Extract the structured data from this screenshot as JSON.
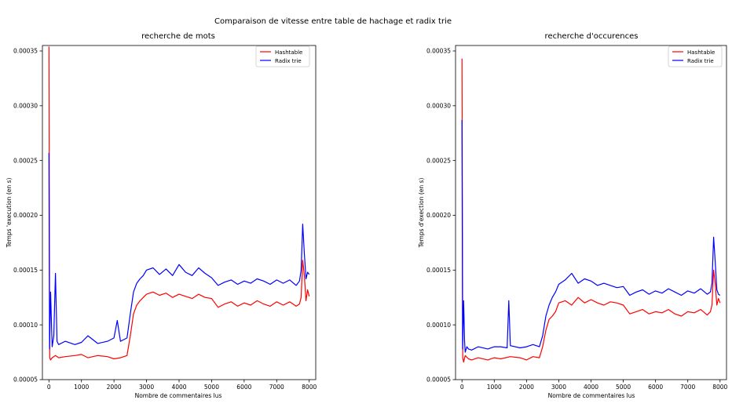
{
  "figure": {
    "suptitle": "Comparaison de vitesse entre table de hachage et radix trie"
  },
  "chart_data": [
    {
      "type": "line",
      "title": "recherche de mots",
      "xlabel": "Nombre de commentaires lus",
      "ylabel": "Temps 'execution (en s)",
      "xlim": [
        -200,
        8200
      ],
      "ylim": [
        5e-05,
        0.000355
      ],
      "xticks": [
        0,
        1000,
        2000,
        3000,
        4000,
        5000,
        6000,
        7000,
        8000
      ],
      "yticks": [
        5e-05,
        0.0001,
        0.00015,
        0.0002,
        0.00025,
        0.0003,
        0.00035
      ],
      "ytick_labels": [
        "0.00005",
        "0.00010",
        "0.00015",
        "0.00020",
        "0.00025",
        "0.00030",
        "0.00035"
      ],
      "legend_position": "upper right",
      "series": [
        {
          "name": "Hashtable",
          "color": "#ff0000",
          "x": [
            0,
            25,
            50,
            100,
            200,
            300,
            500,
            800,
            1000,
            1200,
            1500,
            1800,
            2000,
            2200,
            2400,
            2500,
            2600,
            2700,
            2800,
            2900,
            3000,
            3200,
            3400,
            3600,
            3800,
            4000,
            4200,
            4400,
            4600,
            4800,
            5000,
            5200,
            5400,
            5600,
            5800,
            6000,
            6200,
            6400,
            6600,
            6800,
            7000,
            7200,
            7400,
            7600,
            7700,
            7750,
            7800,
            7850,
            7900,
            7950,
            8000
          ],
          "values": [
            0.000354,
            7e-05,
            6.8e-05,
            7e-05,
            7.2e-05,
            7e-05,
            7.1e-05,
            7.2e-05,
            7.3e-05,
            7e-05,
            7.2e-05,
            7.1e-05,
            6.9e-05,
            7e-05,
            7.2e-05,
            9e-05,
            0.00011,
            0.000118,
            0.000122,
            0.000125,
            0.000128,
            0.00013,
            0.000127,
            0.000129,
            0.000125,
            0.000128,
            0.000126,
            0.000124,
            0.000128,
            0.000125,
            0.000124,
            0.000116,
            0.000119,
            0.000121,
            0.000117,
            0.00012,
            0.000118,
            0.000122,
            0.000119,
            0.000117,
            0.000121,
            0.000118,
            0.000121,
            0.000117,
            0.000119,
            0.000125,
            0.000159,
            0.000145,
            0.000122,
            0.000132,
            0.000126
          ]
        },
        {
          "name": "Radix trie",
          "color": "#0000ff",
          "x": [
            0,
            20,
            50,
            100,
            150,
            200,
            250,
            300,
            500,
            800,
            1000,
            1200,
            1500,
            1800,
            2000,
            2100,
            2200,
            2400,
            2500,
            2600,
            2700,
            2800,
            2900,
            3000,
            3200,
            3400,
            3600,
            3800,
            4000,
            4200,
            4400,
            4600,
            4800,
            5000,
            5200,
            5400,
            5600,
            5800,
            6000,
            6200,
            6400,
            6600,
            6800,
            7000,
            7200,
            7400,
            7600,
            7700,
            7750,
            7800,
            7850,
            7900,
            7950,
            8000
          ],
          "values": [
            0.000257,
            7.8e-05,
            0.00013,
            8e-05,
            9e-05,
            0.000147,
            8.5e-05,
            8.2e-05,
            8.5e-05,
            8.2e-05,
            8.4e-05,
            9e-05,
            8.3e-05,
            8.5e-05,
            8.8e-05,
            0.000104,
            8.5e-05,
            8.8e-05,
            0.00011,
            0.00013,
            0.000138,
            0.000142,
            0.000145,
            0.00015,
            0.000152,
            0.000146,
            0.000151,
            0.000145,
            0.000155,
            0.000148,
            0.000145,
            0.000152,
            0.000147,
            0.000143,
            0.000136,
            0.000139,
            0.000141,
            0.000137,
            0.00014,
            0.000138,
            0.000142,
            0.00014,
            0.000137,
            0.000141,
            0.000138,
            0.000141,
            0.000136,
            0.00014,
            0.00015,
            0.000192,
            0.000165,
            0.000142,
            0.000148,
            0.000146
          ]
        }
      ]
    },
    {
      "type": "line",
      "title": "recherche d'occurences",
      "xlabel": "Nombre de commentaires lus",
      "ylabel": "Temps d'exection (en s)",
      "xlim": [
        -200,
        8200
      ],
      "ylim": [
        5e-05,
        0.000355
      ],
      "xticks": [
        0,
        1000,
        2000,
        3000,
        4000,
        5000,
        6000,
        7000,
        8000
      ],
      "yticks": [
        5e-05,
        0.0001,
        0.00015,
        0.0002,
        0.00025,
        0.0003,
        0.00035
      ],
      "ytick_labels": [
        "0.00005",
        "0.00010",
        "0.00015",
        "0.00020",
        "0.00025",
        "0.00030",
        "0.00035"
      ],
      "legend_position": "upper right",
      "series": [
        {
          "name": "Hashtable",
          "color": "#ff0000",
          "x": [
            0,
            25,
            50,
            100,
            200,
            300,
            500,
            800,
            1000,
            1200,
            1500,
            1800,
            2000,
            2200,
            2400,
            2500,
            2600,
            2700,
            2800,
            2900,
            3000,
            3200,
            3400,
            3600,
            3800,
            4000,
            4200,
            4400,
            4600,
            4800,
            5000,
            5200,
            5400,
            5600,
            5800,
            6000,
            6200,
            6400,
            6600,
            6800,
            7000,
            7200,
            7400,
            7600,
            7700,
            7750,
            7800,
            7850,
            7900,
            7950,
            8000
          ],
          "values": [
            0.000343,
            7e-05,
            6.6e-05,
            7.2e-05,
            6.9e-05,
            6.8e-05,
            7e-05,
            6.8e-05,
            7e-05,
            6.9e-05,
            7.1e-05,
            7e-05,
            6.8e-05,
            7.1e-05,
            7e-05,
            8e-05,
            9.5e-05,
            0.000105,
            0.000108,
            0.000112,
            0.00012,
            0.000122,
            0.000118,
            0.000125,
            0.00012,
            0.000123,
            0.00012,
            0.000118,
            0.000121,
            0.00012,
            0.000118,
            0.00011,
            0.000112,
            0.000114,
            0.00011,
            0.000112,
            0.000111,
            0.000114,
            0.00011,
            0.000108,
            0.000112,
            0.000111,
            0.000114,
            0.000109,
            0.000112,
            0.000118,
            0.00015,
            0.000138,
            0.000118,
            0.000124,
            0.00012
          ]
        },
        {
          "name": "Radix trie",
          "color": "#0000ff",
          "x": [
            0,
            20,
            50,
            80,
            100,
            150,
            200,
            300,
            500,
            800,
            1000,
            1200,
            1400,
            1450,
            1500,
            1800,
            2000,
            2200,
            2400,
            2500,
            2600,
            2700,
            2800,
            2900,
            3000,
            3200,
            3400,
            3600,
            3800,
            4000,
            4200,
            4400,
            4600,
            4800,
            5000,
            5200,
            5400,
            5600,
            5800,
            6000,
            6200,
            6400,
            6600,
            6800,
            7000,
            7200,
            7400,
            7600,
            7700,
            7750,
            7800,
            7850,
            7900,
            7950,
            8000
          ],
          "values": [
            0.000287,
            7.8e-05,
            0.000122,
            8.5e-05,
            7.5e-05,
            8e-05,
            7.8e-05,
            7.7e-05,
            8e-05,
            7.8e-05,
            8e-05,
            8e-05,
            7.9e-05,
            0.000122,
            8.1e-05,
            7.9e-05,
            8e-05,
            8.2e-05,
            8e-05,
            9e-05,
            0.000108,
            0.000118,
            0.000125,
            0.00013,
            0.000137,
            0.000141,
            0.000147,
            0.000138,
            0.000142,
            0.00014,
            0.000136,
            0.000138,
            0.000136,
            0.000134,
            0.000135,
            0.000127,
            0.00013,
            0.000132,
            0.000128,
            0.000131,
            0.000129,
            0.000133,
            0.00013,
            0.000127,
            0.000131,
            0.000129,
            0.000133,
            0.000128,
            0.00013,
            0.000138,
            0.00018,
            0.000158,
            0.000132,
            0.000128,
            0.000127
          ]
        }
      ]
    }
  ]
}
